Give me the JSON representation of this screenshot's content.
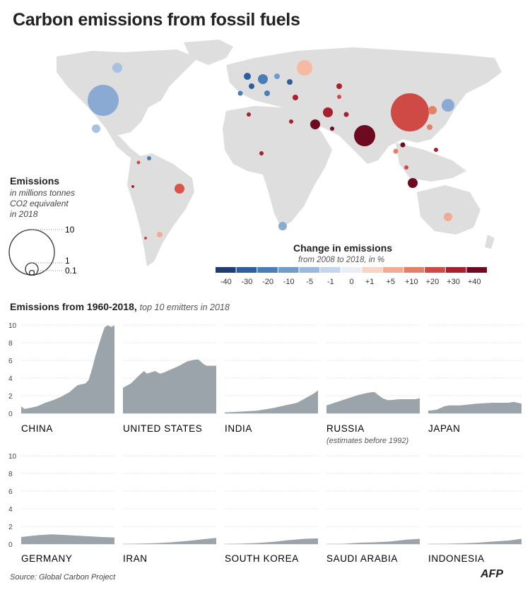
{
  "title": "Carbon emissions from fossil fuels",
  "map_legend": {
    "title": "Emissions",
    "subtitle_lines": [
      "in millions tonnes",
      "CO2 equivalent",
      "in 2018"
    ],
    "sizes": [
      "10",
      "1",
      "0.1"
    ]
  },
  "change_legend": {
    "title": "Change in emissions",
    "subtitle": "from 2008 to 2018, in %",
    "labels": [
      "-40",
      "-30",
      "-20",
      "-10",
      "-5",
      "-1",
      "0",
      "+1",
      "+5",
      "+10",
      "+20",
      "+30",
      "+40"
    ],
    "colors": [
      "#1f3d73",
      "#2f5f9b",
      "#4a7db6",
      "#6f9ccb",
      "#99b8dc",
      "#c4d6ec",
      "#eaeef4",
      "#f8d4c6",
      "#f1ab95",
      "#e47f68",
      "#cf4a44",
      "#a8202d",
      "#6e0a1f"
    ]
  },
  "small_multiples_title_bold": "Emissions from 1960-2018,",
  "small_multiples_title_italic": "top 10 emitters in 2018",
  "y_ticks": [
    "0",
    "2",
    "4",
    "6",
    "8",
    "10"
  ],
  "source": "Source: Global Carbon Project",
  "logo": "AFP",
  "chart_data": {
    "type": "area",
    "xlabel": "",
    "ylabel": "",
    "x_range": [
      1960,
      2018
    ],
    "ylim": [
      0,
      10
    ],
    "color": "#9ba4aa",
    "series": [
      {
        "name": "China",
        "note": "",
        "x": [
          1960,
          1962,
          1965,
          1970,
          1975,
          1980,
          1985,
          1990,
          1995,
          2000,
          2002,
          2004,
          2006,
          2008,
          2010,
          2012,
          2014,
          2016,
          2018
        ],
        "y": [
          0.8,
          0.5,
          0.6,
          0.8,
          1.2,
          1.5,
          1.9,
          2.4,
          3.2,
          3.4,
          3.8,
          5.0,
          6.4,
          7.6,
          8.8,
          9.8,
          10.0,
          9.8,
          10.0
        ]
      },
      {
        "name": "United States",
        "note": "",
        "x": [
          1960,
          1965,
          1970,
          1973,
          1975,
          1980,
          1983,
          1985,
          1990,
          1995,
          2000,
          2005,
          2007,
          2010,
          2012,
          2015,
          2018
        ],
        "y": [
          2.9,
          3.4,
          4.3,
          4.8,
          4.5,
          4.8,
          4.5,
          4.6,
          5.0,
          5.4,
          5.9,
          6.1,
          6.1,
          5.6,
          5.4,
          5.4,
          5.4
        ]
      },
      {
        "name": "India",
        "note": "",
        "x": [
          1960,
          1970,
          1980,
          1990,
          2000,
          2005,
          2010,
          2015,
          2018
        ],
        "y": [
          0.1,
          0.2,
          0.3,
          0.6,
          1.0,
          1.2,
          1.7,
          2.2,
          2.6
        ]
      },
      {
        "name": "Russia",
        "note": "(estimates before 1992)",
        "x": [
          1960,
          1965,
          1970,
          1975,
          1980,
          1985,
          1988,
          1990,
          1992,
          1995,
          1998,
          2000,
          2005,
          2010,
          2015,
          2018
        ],
        "y": [
          0.9,
          1.2,
          1.5,
          1.8,
          2.1,
          2.3,
          2.4,
          2.4,
          2.1,
          1.7,
          1.5,
          1.5,
          1.6,
          1.6,
          1.6,
          1.7
        ]
      },
      {
        "name": "Japan",
        "note": "",
        "x": [
          1960,
          1965,
          1970,
          1973,
          1980,
          1990,
          2000,
          2005,
          2010,
          2013,
          2018
        ],
        "y": [
          0.3,
          0.4,
          0.8,
          0.9,
          0.9,
          1.1,
          1.2,
          1.2,
          1.2,
          1.3,
          1.1
        ]
      },
      {
        "name": "Germany",
        "note": "",
        "x": [
          1960,
          1965,
          1970,
          1979,
          1985,
          1990,
          1995,
          2000,
          2005,
          2010,
          2018
        ],
        "y": [
          0.8,
          0.9,
          1.0,
          1.1,
          1.05,
          1.0,
          0.95,
          0.9,
          0.85,
          0.8,
          0.75
        ]
      },
      {
        "name": "Iran",
        "note": "",
        "x": [
          1960,
          1970,
          1980,
          1990,
          2000,
          2010,
          2018
        ],
        "y": [
          0.02,
          0.05,
          0.1,
          0.2,
          0.35,
          0.55,
          0.7
        ]
      },
      {
        "name": "South Korea",
        "note": "",
        "x": [
          1960,
          1970,
          1980,
          1990,
          2000,
          2010,
          2018
        ],
        "y": [
          0.01,
          0.05,
          0.12,
          0.25,
          0.45,
          0.6,
          0.65
        ]
      },
      {
        "name": "Saudi Arabia",
        "note": "",
        "x": [
          1960,
          1970,
          1980,
          1990,
          2000,
          2010,
          2018
        ],
        "y": [
          0.01,
          0.03,
          0.15,
          0.2,
          0.3,
          0.5,
          0.6
        ]
      },
      {
        "name": "Indonesia",
        "note": "",
        "x": [
          1960,
          1970,
          1980,
          1990,
          2000,
          2010,
          2018
        ],
        "y": [
          0.02,
          0.03,
          0.08,
          0.15,
          0.28,
          0.4,
          0.6
        ]
      }
    ]
  }
}
